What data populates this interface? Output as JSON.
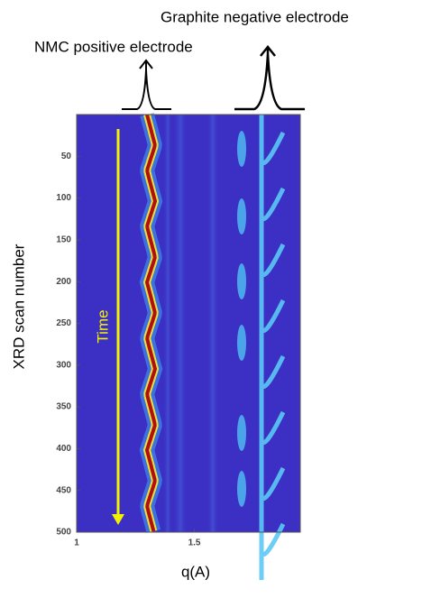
{
  "chart_data": {
    "type": "heatmap",
    "xlabel": "q(A)",
    "ylabel": "XRD scan number",
    "xlim": [
      1,
      1.95
    ],
    "xticks": [
      1,
      1.5
    ],
    "ylim": [
      0,
      500
    ],
    "yticks": [
      50,
      100,
      150,
      200,
      250,
      300,
      350,
      400,
      450,
      500
    ],
    "y_inverted": true,
    "annotations": {
      "nmc": "NMC positive electrode",
      "graphite": "Graphite negative electrode",
      "time": "Time"
    }
  }
}
